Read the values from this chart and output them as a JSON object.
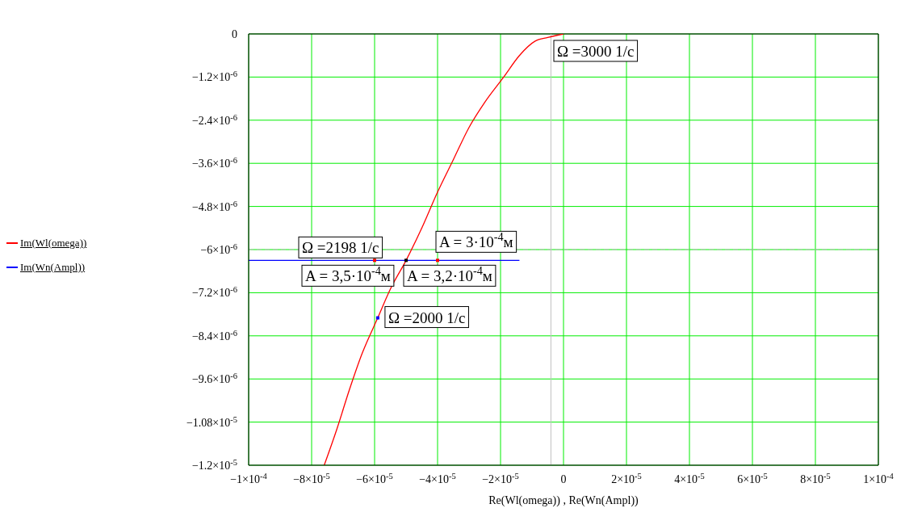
{
  "chart_data": {
    "type": "line",
    "xlabel": "Re(Wl(omega)) , Re(Wn(Ampl))",
    "xlim": [
      -0.0001,
      0.0001
    ],
    "xticks": [
      {
        "value": -0.0001,
        "label": "−1×10$^{-4}$"
      },
      {
        "value": -8e-05,
        "label": "−8×10$^{-5}$"
      },
      {
        "value": -6e-05,
        "label": "−6×10$^{-5}$"
      },
      {
        "value": -4e-05,
        "label": "−4×10$^{-5}$"
      },
      {
        "value": -2e-05,
        "label": "−2×10$^{-5}$"
      },
      0,
      {
        "value": 2e-05,
        "label": "2×10$^{-5}$"
      },
      {
        "value": 4e-05,
        "label": "4×10$^{-5}$"
      },
      {
        "value": 6e-05,
        "label": "6×10$^{-5}$"
      },
      {
        "value": 8e-05,
        "label": "8×10$^{-5}$"
      },
      {
        "value": 0.0001,
        "label": "1×10$^{-4}$"
      }
    ],
    "ylim": [
      -1.2e-05,
      0
    ],
    "yticks": [
      0,
      {
        "value": -1.2e-06,
        "label": "−1.2×10$^{-6}$"
      },
      {
        "value": -2.4e-06,
        "label": "−2.4×10$^{-6}$"
      },
      {
        "value": -3.6e-06,
        "label": "−3.6×10$^{-6}$"
      },
      {
        "value": -4.8e-06,
        "label": "−4.8×10$^{-6}$"
      },
      {
        "value": -6e-06,
        "label": "−6×10$^{-6}$"
      },
      {
        "value": -7.2e-06,
        "label": "−7.2×10$^{-6}$"
      },
      {
        "value": -8.4e-06,
        "label": "−8.4×10$^{-6}$"
      },
      {
        "value": -9.6e-06,
        "label": "−9.6×10$^{-6}$"
      },
      {
        "value": -1.08e-05,
        "label": "−1.08×10$^{-5}$"
      },
      {
        "value": -1.2e-05,
        "label": "−1.2×10$^{-5}$"
      }
    ],
    "grid": true,
    "legend": "left",
    "marker": "none",
    "line_style": "solid",
    "series": [
      {
        "name": "Im(Wl(omega))",
        "color": "#ff0000",
        "x": [
          0,
          -5e-06,
          -9e-06,
          -1.4e-05,
          -1.9e-05,
          -2.5e-05,
          -3e-05,
          -3.5e-05,
          -4e-05,
          -4.5e-05,
          -5e-05,
          -5.5e-05,
          -5.9e-05,
          -6.4e-05,
          -6.8e-05,
          -7.2e-05,
          -7.6e-05
        ],
        "values": [
          0,
          -1e-07,
          -2e-07,
          -6e-07,
          -1.2e-06,
          -1.9e-06,
          -2.6e-06,
          -3.5e-06,
          -4.4e-06,
          -5.4e-06,
          -6.3e-06,
          -7.1e-06,
          -7.9e-06,
          -8.9e-06,
          -9.9e-06,
          -1.1e-05,
          -1.2e-05
        ]
      },
      {
        "name": "Im(Wn(Ampl))",
        "color": "#0000ff",
        "x": [
          -0.0001,
          -1.4e-05
        ],
        "values": [
          -6.3e-06,
          -6.3e-06
        ]
      },
      {
        "type": "scatter",
        "color": "#ff0000",
        "marker": "square",
        "x": [
          -6e-05,
          -4e-05
        ],
        "values": [
          -6.3e-06,
          -6.3e-06
        ]
      },
      {
        "type": "scatter",
        "color": "#000000",
        "marker": "square",
        "x": [
          -5e-05
        ],
        "values": [
          -6.3e-06
        ]
      },
      {
        "type": "scatter",
        "color": "#0000ff",
        "marker": "square",
        "x": [
          -5.9e-05
        ],
        "values": [
          -7.9e-06
        ]
      }
    ],
    "ref_lines": [
      {
        "axis": "y",
        "value": -6e-06,
        "color": "#c0c0c0",
        "line_style": "dashed"
      },
      {
        "axis": "x",
        "value": -4e-06,
        "color": "#c0c0c0",
        "line_style": "solid"
      }
    ],
    "annotations": [
      {
        "text": "Ω =3000 1/c",
        "x": 0,
        "y": 0
      },
      {
        "text": "Ω =2198 1/c",
        "x": -5e-05,
        "y": -6.3e-06
      },
      {
        "text": "A = 3,5·10$^{-4}$м",
        "x": -6e-05,
        "y": -6.3e-06
      },
      {
        "text": "A = 3·10$^{-4}$м",
        "x": -4e-05,
        "y": -6.3e-06
      },
      {
        "text": "A = 3,2·10$^{-4}$м",
        "x": -5e-05,
        "y": -6.3e-06
      },
      {
        "text": "Ω =2000 1/c",
        "x": -5.9e-05,
        "y": -7.9e-06
      }
    ]
  }
}
